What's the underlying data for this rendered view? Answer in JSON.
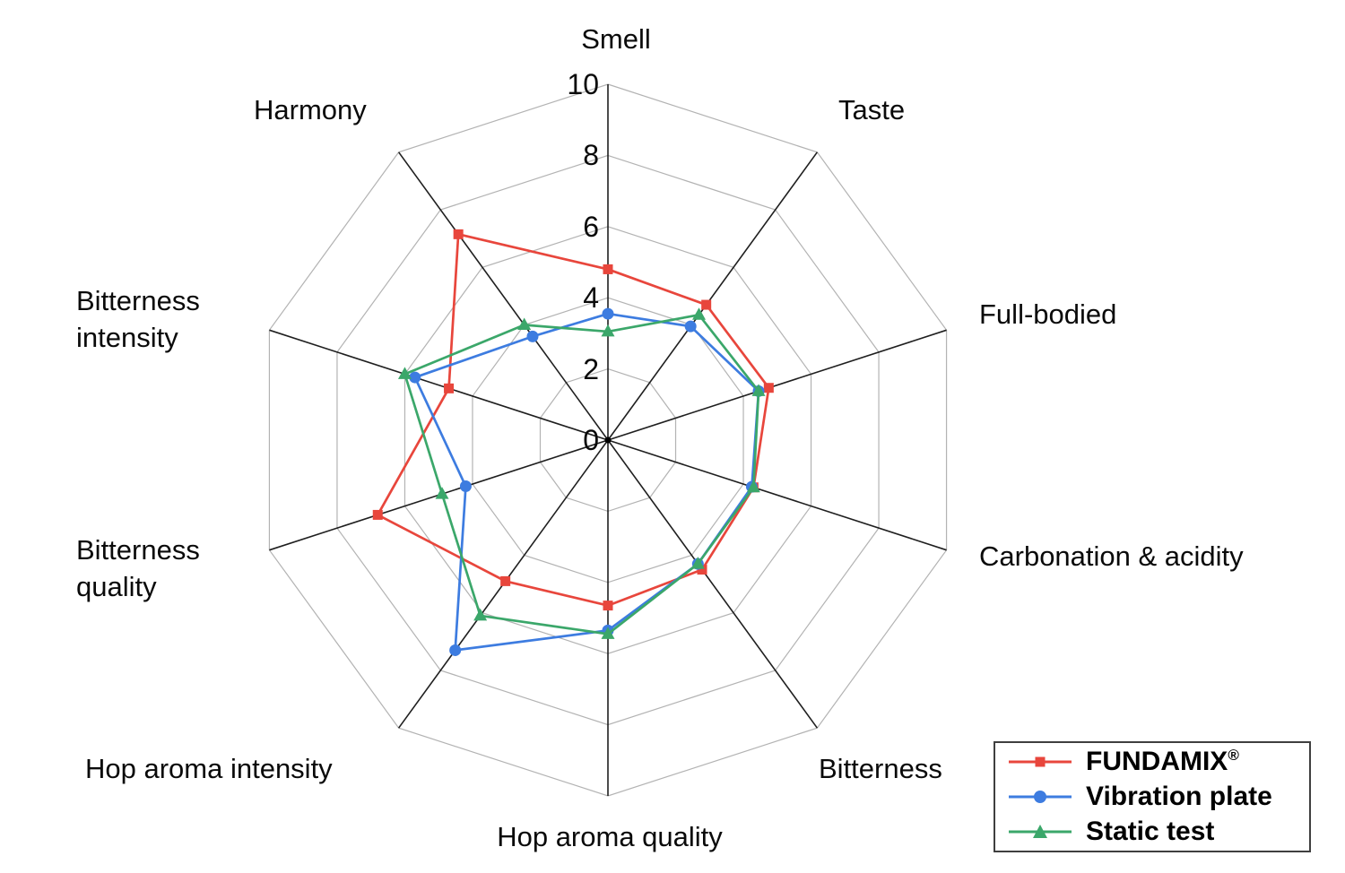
{
  "page": {
    "background": "#ffffff"
  },
  "chart_data": {
    "type": "radar",
    "title": "",
    "categories": [
      "Smell",
      "Taste",
      "Full-bodied",
      "Carbonation & acidity",
      "Bitterness",
      "Hop aroma quality",
      "Hop aroma intensity",
      "Bitterness quality",
      "Bitterness intensity",
      "Harmony"
    ],
    "series": [
      {
        "name": "FUNDAMIX®",
        "marker": "square",
        "color": "#e8463c",
        "values": [
          4.8,
          4.7,
          4.75,
          4.3,
          4.5,
          4.65,
          4.9,
          6.8,
          4.7,
          7.15
        ]
      },
      {
        "name": "Vibration plate",
        "marker": "circle",
        "color": "#3d7ce0",
        "values": [
          3.55,
          3.95,
          4.45,
          4.25,
          4.3,
          5.35,
          7.3,
          4.2,
          5.7,
          3.6
        ]
      },
      {
        "name": "Static test",
        "marker": "triangle",
        "color": "#3ba76a",
        "values": [
          3.05,
          4.35,
          4.45,
          4.3,
          4.3,
          5.45,
          6.1,
          4.9,
          6.0,
          4.0
        ]
      }
    ],
    "ticks": [
      "0",
      "2",
      "4",
      "6",
      "8",
      "10"
    ],
    "rlim": [
      0,
      10
    ],
    "grid_ring_color": "#b3b3b3",
    "spoke_color": "#1f1f1f",
    "legend_position": "bottom-right"
  },
  "legend": {
    "items": [
      {
        "label": "FUNDAMIX",
        "sup": "®"
      },
      {
        "label": "Vibration plate",
        "sup": ""
      },
      {
        "label": "Static test",
        "sup": ""
      }
    ]
  }
}
